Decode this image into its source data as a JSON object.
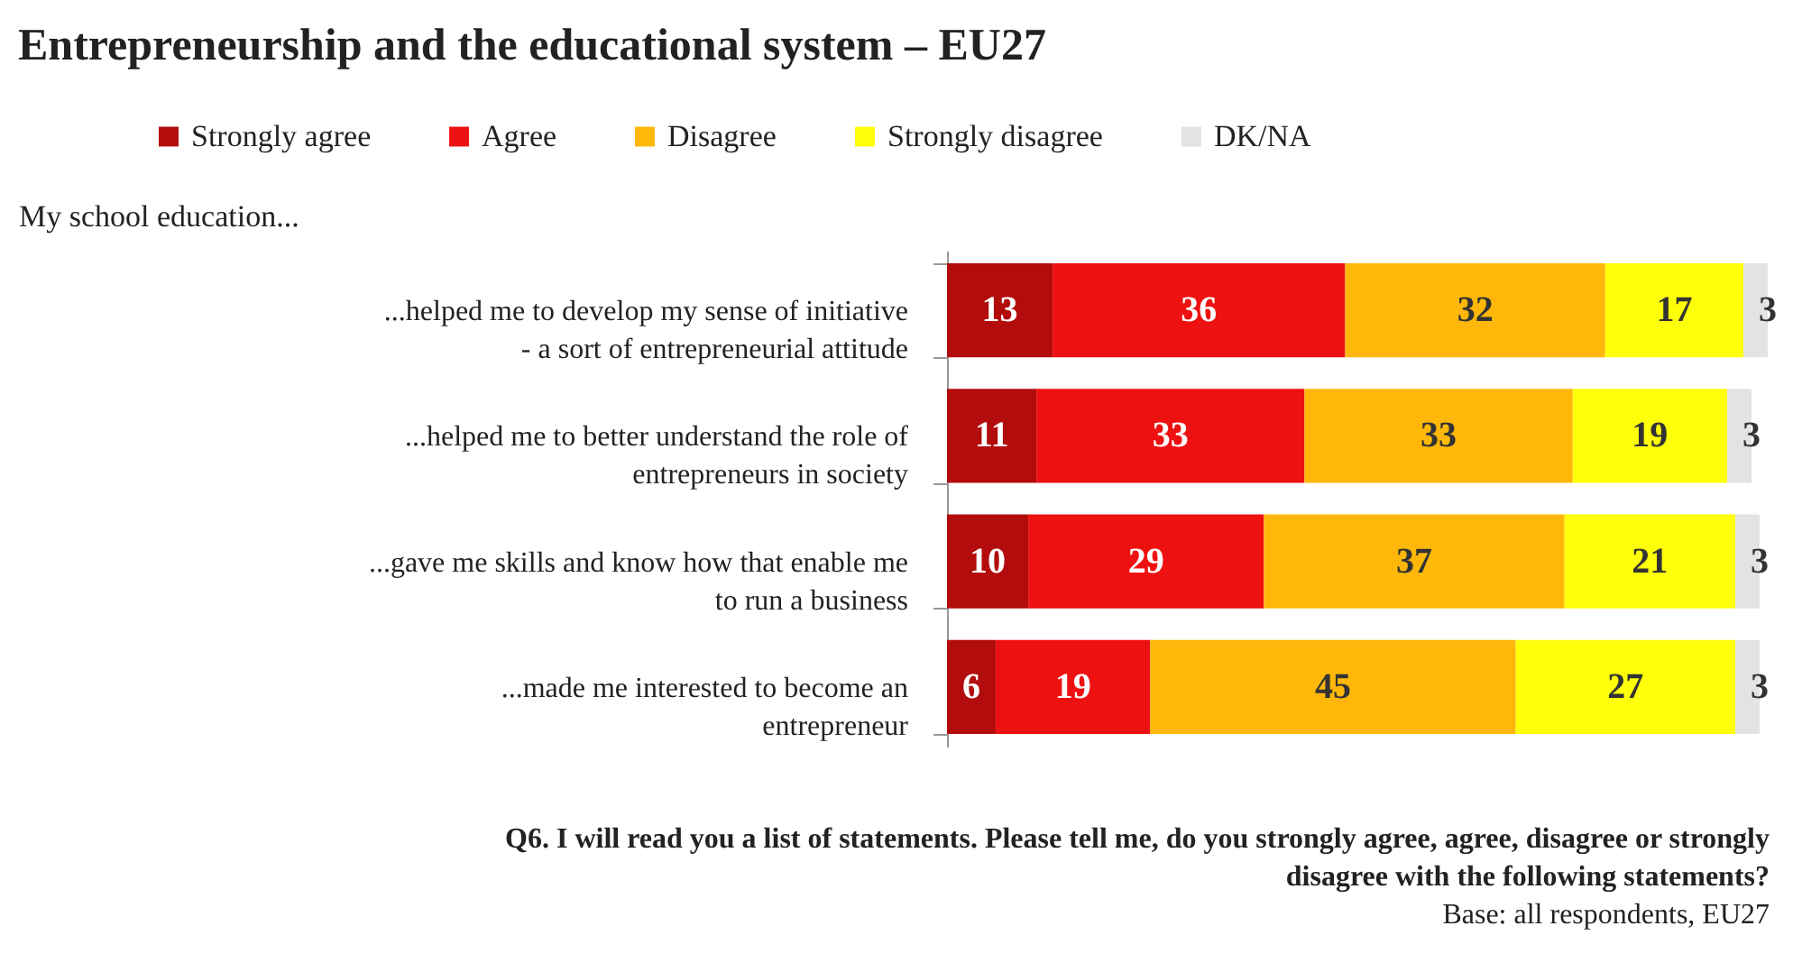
{
  "chart_data": {
    "type": "bar",
    "orientation": "horizontal",
    "stacked": true,
    "data_labels": true,
    "tick_labels": "y",
    "legend": "top",
    "grid": false,
    "title": "Entrepreneurship and the educational system – EU27",
    "subtitle": "My school education...",
    "categories": [
      "...helped me to develop my sense of initiative - a sort of entrepreneurial attitude",
      "...helped me to better understand the role of entrepreneurs in society",
      "...gave me skills and know how that enable me to run a business",
      "...made me interested to become an entrepreneur"
    ],
    "series": [
      {
        "name": "Strongly agree",
        "color": "#b20c0c",
        "values": [
          13,
          11,
          10,
          6
        ]
      },
      {
        "name": "Agree",
        "color": "#ee1111",
        "values": [
          36,
          33,
          29,
          19
        ]
      },
      {
        "name": "Disagree",
        "color": "#ffb80a",
        "values": [
          32,
          33,
          37,
          45
        ]
      },
      {
        "name": "Strongly disagree",
        "color": "#ffff0a",
        "values": [
          17,
          19,
          21,
          27
        ]
      },
      {
        "name": "DK/NA",
        "color": "#e3e3e3",
        "values": [
          3,
          3,
          3,
          3
        ]
      }
    ],
    "annotations": [
      "Q6. I will read you a list of statements. Please tell me, do you strongly agree, agree, disagree or strongly disagree with the following statements?",
      "Base: all respondents, EU27"
    ]
  }
}
